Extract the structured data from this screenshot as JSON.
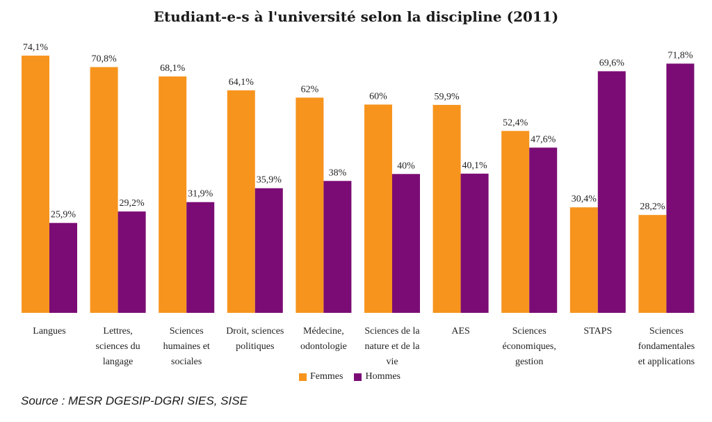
{
  "title": "Etudiant-e-s à l'université selon la discipline (2011)",
  "source": "Source : MESR DGESIP-DGRI SIES, SISE",
  "legend": {
    "femmes": "Femmes",
    "hommes": "Hommes"
  },
  "colors": {
    "femmes": "#F7941D",
    "hommes": "#7B0C75"
  },
  "chart_data": {
    "type": "bar",
    "title": "Etudiant-e-s à l'université selon la discipline (2011)",
    "xlabel": "",
    "ylabel": "",
    "ylim": [
      0,
      80
    ],
    "grid": false,
    "legend_position": "bottom",
    "categories": [
      [
        "Langues"
      ],
      [
        "Lettres,",
        "sciences du",
        "langage"
      ],
      [
        "Sciences",
        "humaines et",
        "sociales"
      ],
      [
        "Droit, sciences",
        "politiques"
      ],
      [
        "Médecine,",
        "odontologie"
      ],
      [
        "Sciences de la",
        "nature et de la",
        "vie"
      ],
      [
        "AES"
      ],
      [
        "Sciences",
        "économiques,",
        "gestion"
      ],
      [
        "STAPS"
      ],
      [
        "Sciences",
        "fondamentales",
        "et applications"
      ]
    ],
    "series": [
      {
        "name": "Femmes",
        "values": [
          74.1,
          70.8,
          68.1,
          64.1,
          62,
          60,
          59.9,
          52.4,
          30.4,
          28.2
        ],
        "labels": [
          "74,1%",
          "70,8%",
          "68,1%",
          "64,1%",
          "62%",
          "60%",
          "59,9%",
          "52,4%",
          "30,4%",
          "28,2%"
        ]
      },
      {
        "name": "Hommes",
        "values": [
          25.9,
          29.2,
          31.9,
          35.9,
          38,
          40,
          40.1,
          47.6,
          69.6,
          71.8
        ],
        "labels": [
          "25,9%",
          "29,2%",
          "31,9%",
          "35,9%",
          "38%",
          "40%",
          "40,1%",
          "47,6%",
          "69,6%",
          "71,8%"
        ]
      }
    ]
  }
}
